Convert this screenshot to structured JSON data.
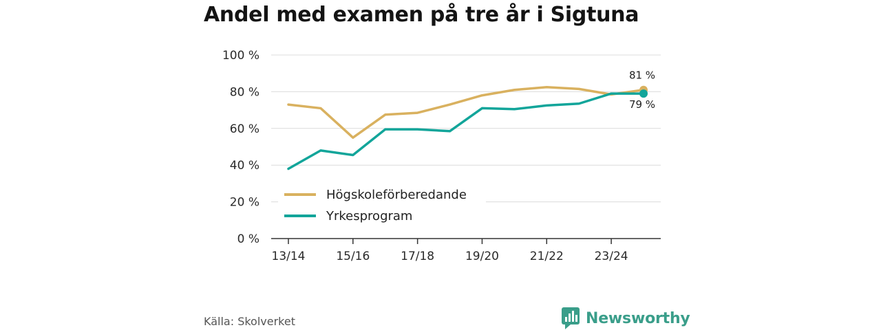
{
  "chart_data": {
    "type": "line",
    "title": "Andel med examen på tre år i Sigtuna",
    "categories": [
      "13/14",
      "14/15",
      "15/16",
      "16/17",
      "17/18",
      "18/19",
      "19/20",
      "20/21",
      "21/22",
      "22/23",
      "23/24",
      "24/25"
    ],
    "x_tick_labels": [
      "13/14",
      "15/16",
      "17/18",
      "19/20",
      "21/22",
      "23/24"
    ],
    "y_tick_labels": [
      "0 %",
      "20 %",
      "40 %",
      "60 %",
      "80 %",
      "100 %"
    ],
    "ylim": [
      0,
      100
    ],
    "grid": true,
    "legend_position": "lower-left",
    "series": [
      {
        "name": "Högskoleförberedande",
        "color": "#d9b15f",
        "values": [
          73,
          71,
          55,
          67.5,
          68.5,
          73,
          78,
          81,
          82.5,
          81.5,
          78.5,
          81
        ],
        "end_label": "81 %"
      },
      {
        "name": "Yrkesprogram",
        "color": "#12a59a",
        "values": [
          38,
          48,
          45.5,
          59.5,
          59.5,
          58.5,
          71,
          70.5,
          72.5,
          73.5,
          79,
          79
        ],
        "end_label": "79 %"
      }
    ]
  },
  "footer": {
    "source": "Källa: Skolverket",
    "brand": "Newsworthy",
    "brand_icon": "bar-chart-logo-icon"
  }
}
